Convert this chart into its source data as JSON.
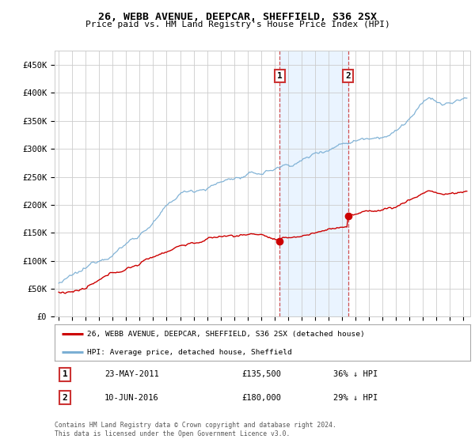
{
  "title": "26, WEBB AVENUE, DEEPCAR, SHEFFIELD, S36 2SX",
  "subtitle": "Price paid vs. HM Land Registry's House Price Index (HPI)",
  "ylabel_ticks": [
    "£0",
    "£50K",
    "£100K",
    "£150K",
    "£200K",
    "£250K",
    "£300K",
    "£350K",
    "£400K",
    "£450K"
  ],
  "ylim": [
    0,
    475000
  ],
  "xlim_start": 1994.7,
  "xlim_end": 2025.5,
  "transaction1": {
    "date_num": 2011.39,
    "price": 135500,
    "label": "1",
    "date_str": "23-MAY-2011",
    "pct": "36% ↓ HPI"
  },
  "transaction2": {
    "date_num": 2016.44,
    "price": 180000,
    "label": "2",
    "date_str": "10-JUN-2016",
    "pct": "29% ↓ HPI"
  },
  "legend_line1": "26, WEBB AVENUE, DEEPCAR, SHEFFIELD, S36 2SX (detached house)",
  "legend_line2": "HPI: Average price, detached house, Sheffield",
  "footer": "Contains HM Land Registry data © Crown copyright and database right 2024.\nThis data is licensed under the Open Government Licence v3.0.",
  "hpi_color": "#7bafd4",
  "price_color": "#cc0000",
  "marker_color": "#cc0000",
  "shade_color": "#ddeeff",
  "box_color": "#cc3333",
  "grid_color": "#cccccc",
  "bg_color": "#ffffff"
}
